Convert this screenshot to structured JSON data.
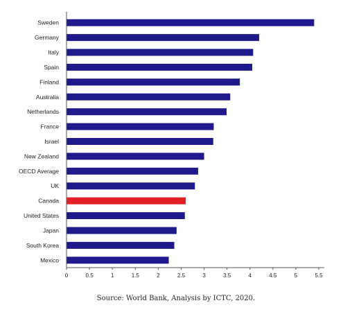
{
  "chart_data": {
    "type": "bar",
    "orientation": "horizontal",
    "categories": [
      "Sweden",
      "Germany",
      "Italy",
      "Spain",
      "Finland",
      "Australia",
      "Netherlands",
      "France",
      "Israel",
      "New Zealand",
      "OECD Average",
      "UK",
      "Canada",
      "United States",
      "Japan",
      "South Korea",
      "Mexico"
    ],
    "values": [
      5.4,
      4.2,
      4.07,
      4.05,
      3.78,
      3.57,
      3.49,
      3.21,
      3.2,
      3.0,
      2.87,
      2.8,
      2.6,
      2.58,
      2.4,
      2.35,
      2.23
    ],
    "xlim": [
      0,
      5.5
    ],
    "xticks": [
      "0",
      "0.5",
      "1",
      "1.5",
      "2",
      "2.5",
      "3",
      "3.5",
      "4",
      "4.5",
      "5",
      "5.5"
    ],
    "grid": false,
    "legend": "none",
    "bar_color": "#1e1a8c",
    "highlight_category": "Canada",
    "highlight_color": "#e41e26"
  },
  "source": "Source: World Bank, Analysis by ICTC, 2020."
}
